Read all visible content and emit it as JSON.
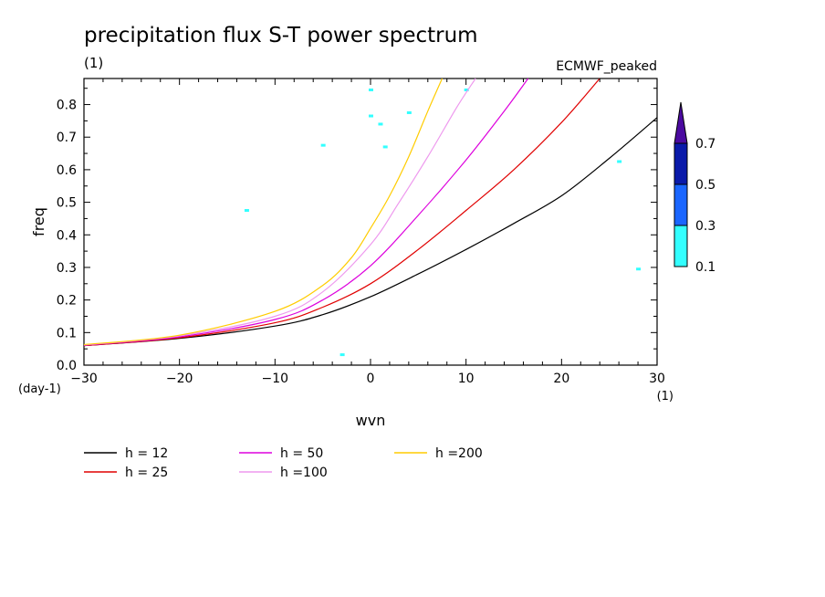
{
  "chart_data": {
    "type": "line",
    "title": "precipitation flux S-T power spectrum",
    "title_units": "(1)",
    "model_label": "ECMWF_peaked",
    "xlabel": "wvn",
    "ylabel": "freq",
    "x_units": "(1)",
    "y_units": "(day-1)",
    "xlim": [
      -30,
      30
    ],
    "ylim": [
      0,
      0.88
    ],
    "x_ticks": [
      -30,
      -20,
      -10,
      0,
      10,
      20,
      30
    ],
    "x_tick_labels": [
      "-30",
      "-20",
      "-10",
      "0",
      "10",
      "20",
      "30"
    ],
    "y_ticks": [
      0.0,
      0.1,
      0.2,
      0.3,
      0.4,
      0.5,
      0.6,
      0.7,
      0.8
    ],
    "y_tick_labels": [
      "0.0",
      "0.1",
      "0.2",
      "0.3",
      "0.4",
      "0.5",
      "0.6",
      "0.7",
      "0.8"
    ],
    "series": [
      {
        "name": "h = 12",
        "color": "#000000",
        "x": [
          -30,
          -20,
          -10,
          -5,
          0,
          5,
          10,
          15,
          20,
          25,
          30
        ],
        "values": [
          0.06,
          0.082,
          0.12,
          0.155,
          0.21,
          0.28,
          0.355,
          0.435,
          0.52,
          0.635,
          0.76
        ]
      },
      {
        "name": "h = 25",
        "color": "#e00000",
        "x": [
          -30,
          -20,
          -10,
          -5,
          0,
          5,
          10,
          15,
          20,
          24
        ],
        "values": [
          0.06,
          0.084,
          0.13,
          0.178,
          0.25,
          0.355,
          0.475,
          0.6,
          0.745,
          0.88
        ]
      },
      {
        "name": "h = 50",
        "color": "#dd00dd",
        "x": [
          -30,
          -20,
          -10,
          -5,
          0,
          5,
          10,
          14,
          16.5
        ],
        "values": [
          0.061,
          0.087,
          0.14,
          0.2,
          0.305,
          0.46,
          0.63,
          0.78,
          0.88
        ]
      },
      {
        "name": "h =100",
        "color": "#ee99ee",
        "x": [
          -30,
          -20,
          -10,
          -5,
          0,
          3,
          6,
          9,
          11
        ],
        "values": [
          0.062,
          0.09,
          0.15,
          0.225,
          0.37,
          0.5,
          0.64,
          0.79,
          0.88
        ]
      },
      {
        "name": "h =200",
        "color": "#ffcc00",
        "x": [
          -30,
          -20,
          -10,
          -5,
          -2,
          0,
          2,
          4,
          6,
          7.5
        ],
        "values": [
          0.063,
          0.092,
          0.165,
          0.245,
          0.33,
          0.42,
          0.52,
          0.64,
          0.78,
          0.88
        ]
      }
    ],
    "colorbar": {
      "levels": [
        "0.1",
        "0.3",
        "0.5",
        "0.7"
      ],
      "colors": [
        "#33ffff",
        "#1a66ff",
        "#0a1aaa",
        "#4b0aa0"
      ]
    },
    "contour_patches_color": "#33ffff",
    "contour_patches": [
      {
        "x": 0,
        "y": 0.845
      },
      {
        "x": 0,
        "y": 0.765
      },
      {
        "x": 1,
        "y": 0.74
      },
      {
        "x": 1.5,
        "y": 0.67
      },
      {
        "x": 4,
        "y": 0.775
      },
      {
        "x": -5,
        "y": 0.675
      },
      {
        "x": -13,
        "y": 0.475
      },
      {
        "x": -3,
        "y": 0.032
      },
      {
        "x": 10,
        "y": 0.845
      },
      {
        "x": 26,
        "y": 0.625
      },
      {
        "x": 28,
        "y": 0.295
      }
    ]
  }
}
